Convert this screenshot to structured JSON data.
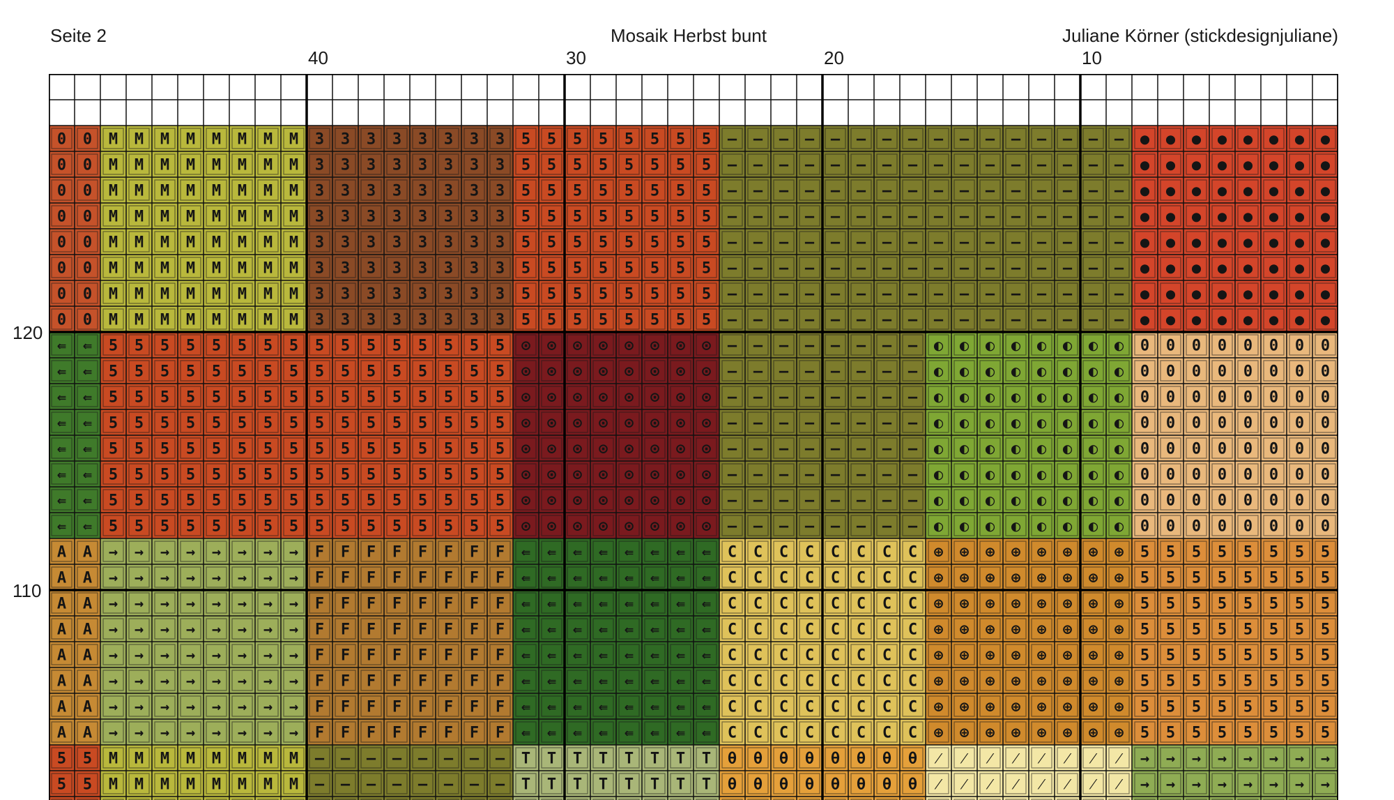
{
  "header": {
    "page_label": "Seite 2",
    "title": "Mosaik Herbst bunt",
    "author": "Juliane Körner (stickdesignjuliane)"
  },
  "column_numbers": [
    "40",
    "30",
    "20",
    "10"
  ],
  "row_numbers": [
    "120",
    "110"
  ],
  "grid": {
    "columns": 50,
    "blank_rows": 2,
    "visible_rows": 27,
    "block_column_widths": [
      2,
      8,
      8,
      8,
      8,
      8,
      8
    ],
    "block_row_heights": [
      8,
      8,
      8,
      3
    ],
    "blocks": [
      [
        {
          "symbol": "0",
          "color": "#c5522a"
        },
        {
          "symbol": "M",
          "color": "#b9b83c"
        },
        {
          "symbol": "3",
          "color": "#8a4a26"
        },
        {
          "symbol": "5",
          "color": "#c94a22"
        },
        {
          "symbol": "—",
          "color": "#7d7c2c"
        },
        {
          "symbol": "—",
          "color": "#7d7c2c"
        },
        {
          "symbol": "●",
          "color": "#d4452a"
        }
      ],
      [
        {
          "symbol": "⇚",
          "color": "#3f7a2a"
        },
        {
          "symbol": "5",
          "color": "#c94a22"
        },
        {
          "symbol": "5",
          "color": "#c94a22"
        },
        {
          "symbol": "⊙",
          "color": "#7a1a1e"
        },
        {
          "symbol": "—",
          "color": "#7d7c2c"
        },
        {
          "symbol": "◐",
          "color": "#7fa734"
        },
        {
          "symbol": "0",
          "color": "#e9b87c"
        }
      ],
      [
        {
          "symbol": "A",
          "color": "#c68a34"
        },
        {
          "symbol": "→",
          "color": "#9dae5a"
        },
        {
          "symbol": "F",
          "color": "#b27a30"
        },
        {
          "symbol": "⇚",
          "color": "#2f6a24"
        },
        {
          "symbol": "C",
          "color": "#dfc25a"
        },
        {
          "symbol": "⊕",
          "color": "#d08a2c"
        },
        {
          "symbol": "5",
          "color": "#dd8e3a"
        }
      ],
      [
        {
          "symbol": "5",
          "color": "#c94a22"
        },
        {
          "symbol": "M",
          "color": "#b9b83c"
        },
        {
          "symbol": "—",
          "color": "#7d7c2c"
        },
        {
          "symbol": "T",
          "color": "#a9b678"
        },
        {
          "symbol": "θ",
          "color": "#e5a03a"
        },
        {
          "symbol": "⁄",
          "color": "#f3e7a6"
        },
        {
          "symbol": "→",
          "color": "#8fac54"
        }
      ]
    ]
  }
}
